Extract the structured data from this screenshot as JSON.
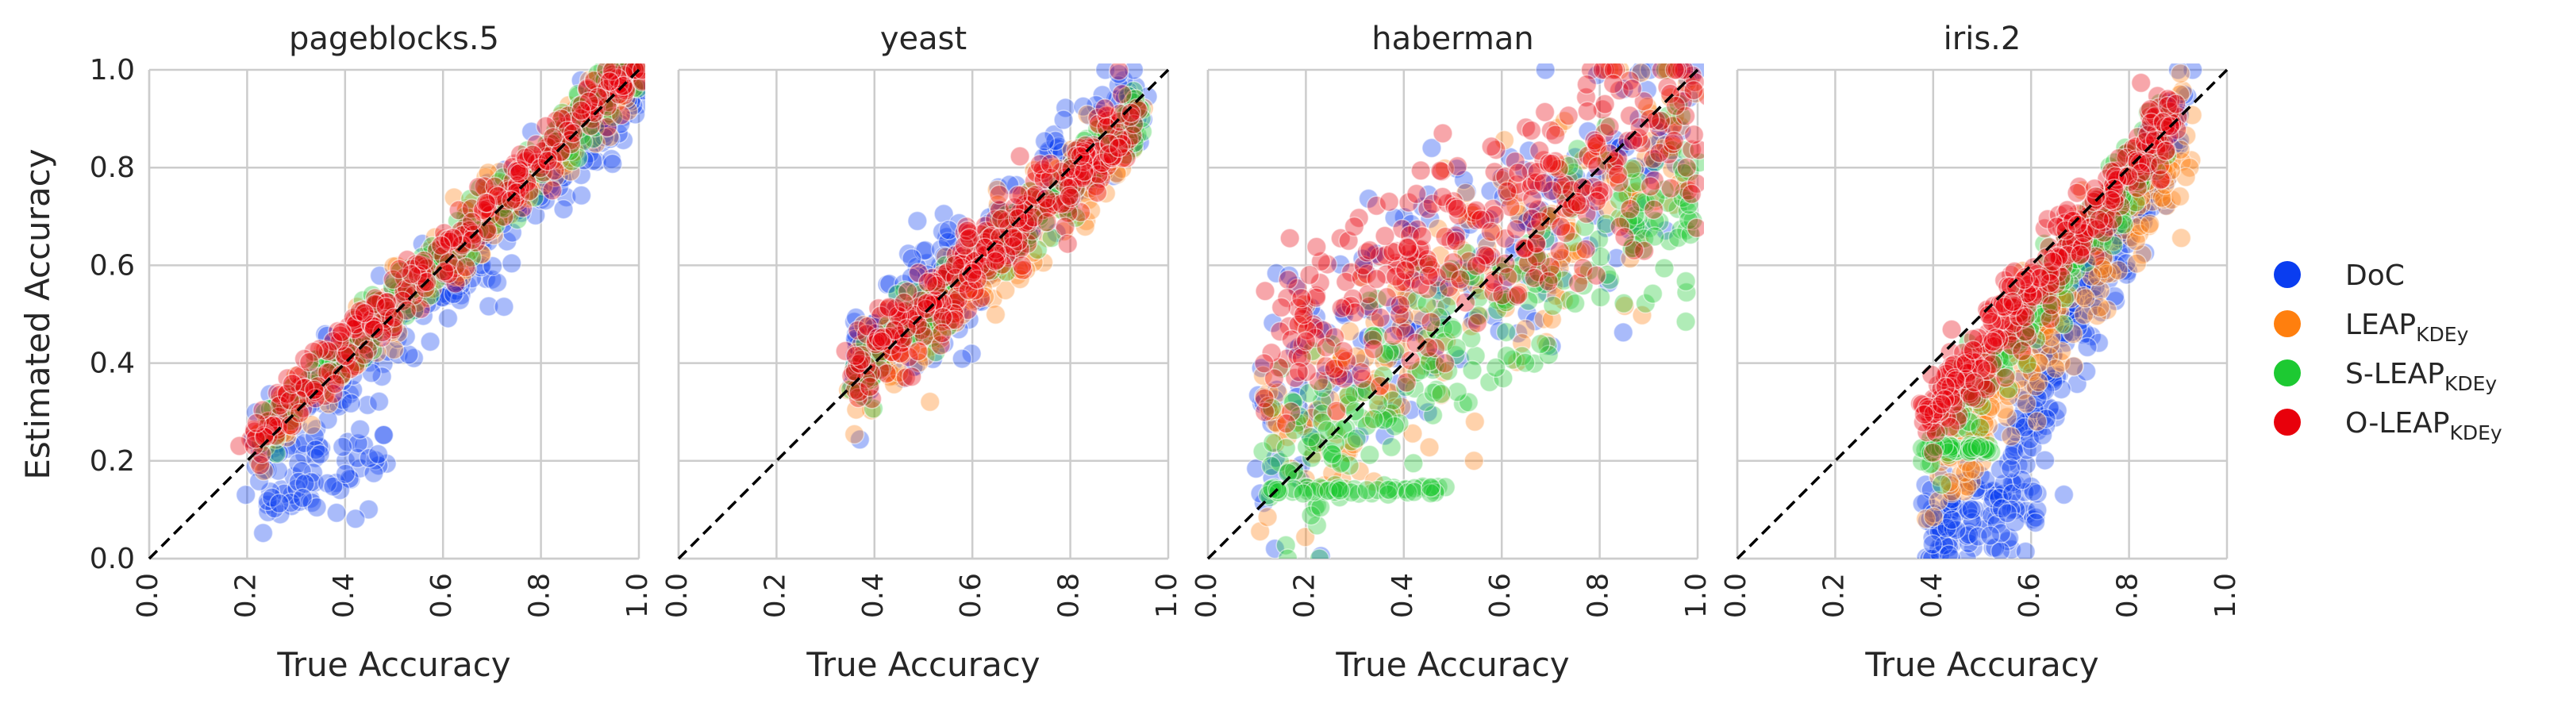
{
  "chart_data": {
    "type": "scatter",
    "xlabel": "True Accuracy",
    "ylabel": "Estimated Accuracy",
    "xlim": [
      0.0,
      1.0
    ],
    "ylim": [
      0.0,
      1.0
    ],
    "ticks": [
      "0.0",
      "0.2",
      "0.4",
      "0.6",
      "0.8",
      "1.0"
    ],
    "grid": true,
    "diagonal": "y = x dashed",
    "legend_position": "right",
    "series": [
      {
        "name": "DoC",
        "sub": "",
        "color": "#0a3df0"
      },
      {
        "name": "LEAP",
        "sub": "KDEy",
        "color": "#ff7f0e"
      },
      {
        "name": "S-LEAP",
        "sub": "KDEy",
        "color": "#1dc932"
      },
      {
        "name": "O-LEAP",
        "sub": "KDEy",
        "color": "#e8000b"
      }
    ],
    "panels": [
      {
        "title": "pageblocks.5",
        "show_ylabel": true,
        "clusters": [
          {
            "series": 0,
            "x0": 0.22,
            "x1": 1.0,
            "slope": 1.0,
            "intercept": -0.03,
            "spread": 0.05,
            "n": 260
          },
          {
            "series": 0,
            "x0": 0.22,
            "x1": 0.48,
            "slope": 0.3,
            "intercept": 0.06,
            "spread": 0.05,
            "n": 60
          },
          {
            "series": 1,
            "x0": 0.22,
            "x1": 1.0,
            "slope": 0.98,
            "intercept": 0.02,
            "spread": 0.035,
            "n": 220
          },
          {
            "series": 2,
            "x0": 0.22,
            "x1": 1.0,
            "slope": 0.98,
            "intercept": 0.03,
            "spread": 0.03,
            "n": 200
          },
          {
            "series": 3,
            "x0": 0.21,
            "x1": 1.0,
            "slope": 0.97,
            "intercept": 0.04,
            "spread": 0.03,
            "n": 300
          }
        ]
      },
      {
        "title": "yeast",
        "show_ylabel": false,
        "clusters": [
          {
            "series": 0,
            "x0": 0.35,
            "x1": 0.95,
            "slope": 0.9,
            "intercept": 0.08,
            "spread": 0.06,
            "n": 240
          },
          {
            "series": 1,
            "x0": 0.35,
            "x1": 0.95,
            "slope": 0.92,
            "intercept": 0.02,
            "spread": 0.045,
            "n": 220
          },
          {
            "series": 2,
            "x0": 0.35,
            "x1": 0.95,
            "slope": 0.92,
            "intercept": 0.04,
            "spread": 0.035,
            "n": 160
          },
          {
            "series": 3,
            "x0": 0.35,
            "x1": 0.93,
            "slope": 0.88,
            "intercept": 0.07,
            "spread": 0.04,
            "n": 300
          }
        ]
      },
      {
        "title": "haberman",
        "show_ylabel": false,
        "clusters": [
          {
            "series": 0,
            "x0": 0.1,
            "x1": 1.0,
            "slope": 0.75,
            "intercept": 0.2,
            "spread": 0.12,
            "n": 200
          },
          {
            "series": 1,
            "x0": 0.1,
            "x1": 1.0,
            "slope": 0.7,
            "intercept": 0.16,
            "spread": 0.12,
            "n": 200
          },
          {
            "series": 2,
            "x0": 0.12,
            "x1": 1.0,
            "slope": 0.7,
            "intercept": 0.08,
            "spread": 0.1,
            "n": 240
          },
          {
            "series": 2,
            "x0": 0.12,
            "x1": 0.5,
            "slope": 0.0,
            "intercept": 0.14,
            "spread": 0.004,
            "n": 50
          },
          {
            "series": 3,
            "x0": 0.1,
            "x1": 1.0,
            "slope": 0.6,
            "intercept": 0.33,
            "spread": 0.1,
            "n": 320
          }
        ]
      },
      {
        "title": "iris.2",
        "show_ylabel": false,
        "clusters": [
          {
            "series": 0,
            "x0": 0.38,
            "x1": 0.62,
            "slope": 0.3,
            "intercept": -0.05,
            "spread": 0.06,
            "n": 120
          },
          {
            "series": 0,
            "x0": 0.55,
            "x1": 0.92,
            "slope": 2.0,
            "intercept": -0.9,
            "spread": 0.06,
            "n": 200
          },
          {
            "series": 1,
            "x0": 0.4,
            "x1": 0.93,
            "slope": 1.3,
            "intercept": -0.35,
            "spread": 0.06,
            "n": 220
          },
          {
            "series": 2,
            "x0": 0.38,
            "x1": 0.88,
            "slope": 1.4,
            "intercept": -0.34,
            "spread": 0.04,
            "n": 180
          },
          {
            "series": 2,
            "x0": 0.38,
            "x1": 0.52,
            "slope": 0.0,
            "intercept": 0.225,
            "spread": 0.004,
            "n": 40
          },
          {
            "series": 3,
            "x0": 0.38,
            "x1": 0.9,
            "slope": 1.25,
            "intercept": -0.2,
            "spread": 0.04,
            "n": 320
          }
        ]
      }
    ]
  }
}
